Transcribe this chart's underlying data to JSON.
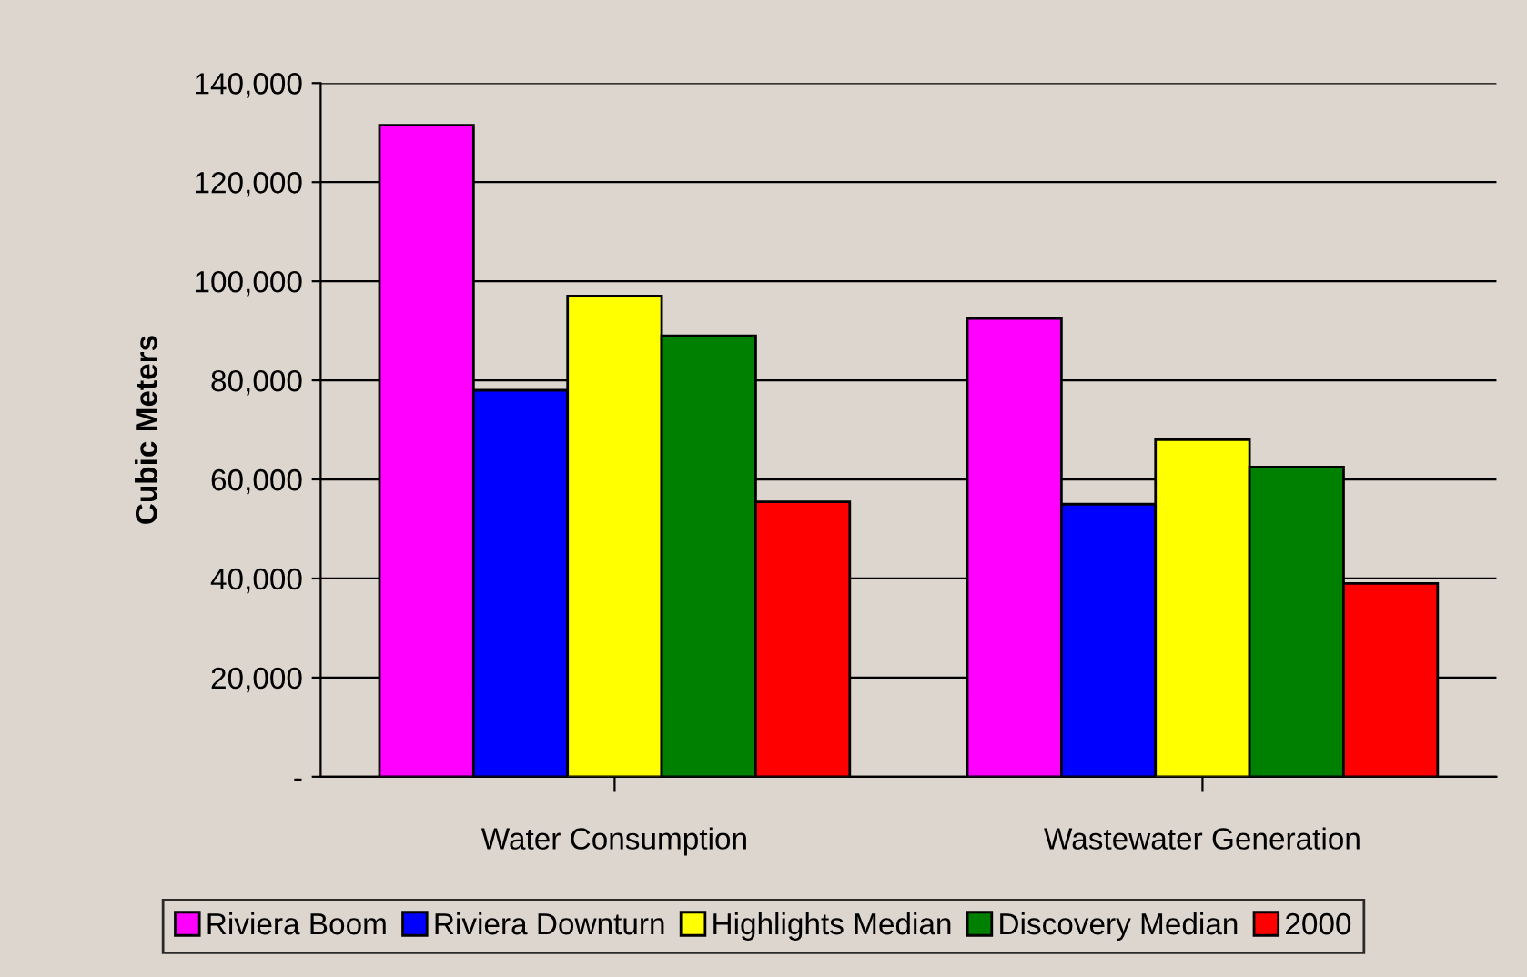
{
  "chart_data": {
    "type": "bar",
    "ylabel": "Cubic Meters",
    "categories": [
      "Water Consumption",
      "Wastewater Generation"
    ],
    "series": [
      {
        "name": "Riviera Boom",
        "color": "#ff00ff",
        "values": [
          131500,
          92500
        ]
      },
      {
        "name": "Riviera Downturn",
        "color": "#0000ff",
        "values": [
          78000,
          55000
        ]
      },
      {
        "name": "Highlights Median",
        "color": "#ffff00",
        "values": [
          97000,
          68000
        ]
      },
      {
        "name": "Discovery Median",
        "color": "#008000",
        "values": [
          89000,
          62500
        ]
      },
      {
        "name": "2000",
        "color": "#ff0000",
        "values": [
          55500,
          39000
        ]
      }
    ],
    "ylim": [
      0,
      140000
    ],
    "yticks": [
      {
        "value": 0,
        "label": "-"
      },
      {
        "value": 20000,
        "label": "20,000"
      },
      {
        "value": 40000,
        "label": "40,000"
      },
      {
        "value": 60000,
        "label": "60,000"
      },
      {
        "value": 80000,
        "label": "80,000"
      },
      {
        "value": 100000,
        "label": "100,000"
      },
      {
        "value": 120000,
        "label": "120,000"
      },
      {
        "value": 140000,
        "label": "140,000"
      }
    ],
    "grid": "y",
    "legend": "bottom"
  }
}
